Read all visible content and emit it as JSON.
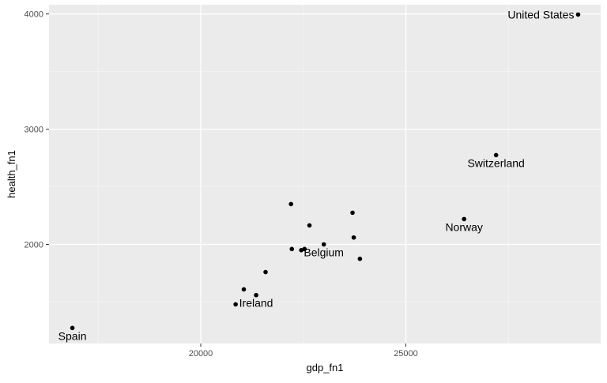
{
  "chart_data": {
    "type": "scatter",
    "title": "",
    "xlabel": "gdp_fn1",
    "ylabel": "health_fn1",
    "xlim": [
      16300,
      29750
    ],
    "ylim": [
      1140,
      4080
    ],
    "xticks": [
      20000,
      25000
    ],
    "xtick_labels": [
      "20000",
      "25000"
    ],
    "yticks": [
      2000,
      3000,
      4000
    ],
    "ytick_labels": [
      "2000",
      "3000",
      "4000"
    ],
    "x_minor_grid": [
      17500,
      22500,
      27500
    ],
    "y_minor_grid": [
      1500,
      2500,
      3500
    ],
    "grid": true,
    "points": [
      {
        "x": 16870,
        "y": 1275,
        "label": "Spain"
      },
      {
        "x": 20850,
        "y": 1480,
        "label": ""
      },
      {
        "x": 21050,
        "y": 1610,
        "label": ""
      },
      {
        "x": 21350,
        "y": 1560,
        "label": "Ireland"
      },
      {
        "x": 21580,
        "y": 1760,
        "label": ""
      },
      {
        "x": 22200,
        "y": 2350,
        "label": ""
      },
      {
        "x": 22220,
        "y": 1960,
        "label": ""
      },
      {
        "x": 22450,
        "y": 1950,
        "label": ""
      },
      {
        "x": 22530,
        "y": 1960,
        "label": ""
      },
      {
        "x": 22650,
        "y": 2165,
        "label": ""
      },
      {
        "x": 23000,
        "y": 2000,
        "label": "Belgium"
      },
      {
        "x": 23700,
        "y": 2275,
        "label": ""
      },
      {
        "x": 23730,
        "y": 2060,
        "label": ""
      },
      {
        "x": 23880,
        "y": 1875,
        "label": ""
      },
      {
        "x": 26420,
        "y": 2220,
        "label": "Norway"
      },
      {
        "x": 27200,
        "y": 2775,
        "label": "Switzerland"
      },
      {
        "x": 29200,
        "y": 3995,
        "label": "United States"
      }
    ],
    "colors": {
      "panel": "#ebebeb",
      "grid_major": "#ffffff",
      "grid_minor": "#f5f5f5",
      "point": "#000000",
      "tick_text": "#4d4d4d",
      "axis_title": "#000000"
    }
  }
}
